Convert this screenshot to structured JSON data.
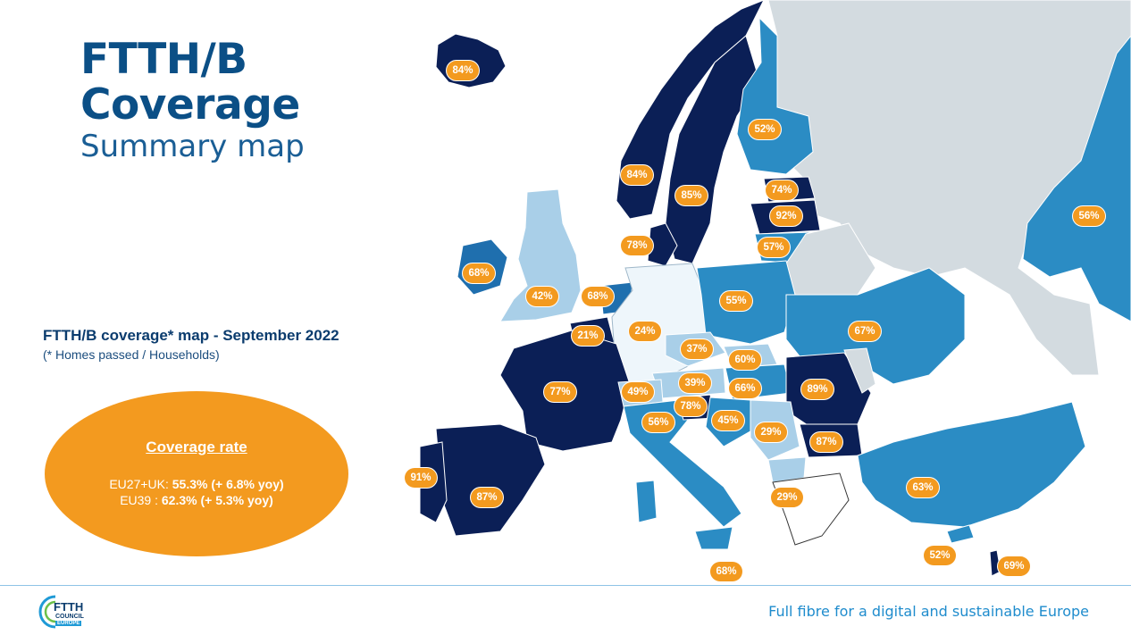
{
  "title": {
    "line1": "FTTH/B",
    "line2": "Coverage",
    "line3": "Summary map"
  },
  "map_heading": "FTTH/B coverage* map - September 2022",
  "map_subheading": "(* Homes passed / Households)",
  "coverage_box": {
    "title": "Coverage rate",
    "eu27_prefix": "EU27+UK: ",
    "eu27_value": "55.3% (+ 6.8% yoy)",
    "eu39_prefix": "EU39 : ",
    "eu39_value": "62.3% (+ 5.3% yoy)"
  },
  "colors": {
    "very_high": "#0b1f56",
    "high": "#1f6fae",
    "medium": "#2b8cc4",
    "low": "#a9cfe8",
    "very_low": "#eef6fb",
    "non_covered": "#d3dbe0",
    "badge": "#f39a1f"
  },
  "country_values": [
    {
      "id": "iceland",
      "value": "84%"
    },
    {
      "id": "norway",
      "value": "84%"
    },
    {
      "id": "sweden",
      "value": "85%"
    },
    {
      "id": "finland",
      "value": "52%"
    },
    {
      "id": "estonia",
      "value": "74%"
    },
    {
      "id": "latvia",
      "value": "92%"
    },
    {
      "id": "lithuania",
      "value": "57%"
    },
    {
      "id": "denmark",
      "value": "78%"
    },
    {
      "id": "ireland",
      "value": "68%"
    },
    {
      "id": "uk",
      "value": "42%"
    },
    {
      "id": "netherlands",
      "value": "68%"
    },
    {
      "id": "belgium",
      "value": "21%"
    },
    {
      "id": "germany",
      "value": "24%"
    },
    {
      "id": "poland",
      "value": "55%"
    },
    {
      "id": "ukraine",
      "value": "67%"
    },
    {
      "id": "czechia",
      "value": "37%"
    },
    {
      "id": "slovakia",
      "value": "60%"
    },
    {
      "id": "austria",
      "value": "39%"
    },
    {
      "id": "hungary",
      "value": "66%"
    },
    {
      "id": "romania",
      "value": "89%"
    },
    {
      "id": "france",
      "value": "77%"
    },
    {
      "id": "switzerland",
      "value": "49%"
    },
    {
      "id": "slovenia",
      "value": "78%"
    },
    {
      "id": "croatia",
      "value": "45%"
    },
    {
      "id": "italy",
      "value": "56%"
    },
    {
      "id": "serbia",
      "value": "29%"
    },
    {
      "id": "bulgaria",
      "value": "87%"
    },
    {
      "id": "portugal",
      "value": "91%"
    },
    {
      "id": "spain",
      "value": "87%"
    },
    {
      "id": "north_macedonia",
      "value": "29%"
    },
    {
      "id": "turkey",
      "value": "63%"
    },
    {
      "id": "russia",
      "value": "56%"
    },
    {
      "id": "malta",
      "value": "68%"
    },
    {
      "id": "cyprus",
      "value": "52%"
    },
    {
      "id": "israel",
      "value": "69%"
    }
  ],
  "footer": {
    "logo_line1": "FTTH",
    "logo_line2": "COUNCIL",
    "logo_line3": "EUROPE",
    "tagline": "Full fibre for a digital and sustainable Europe"
  }
}
